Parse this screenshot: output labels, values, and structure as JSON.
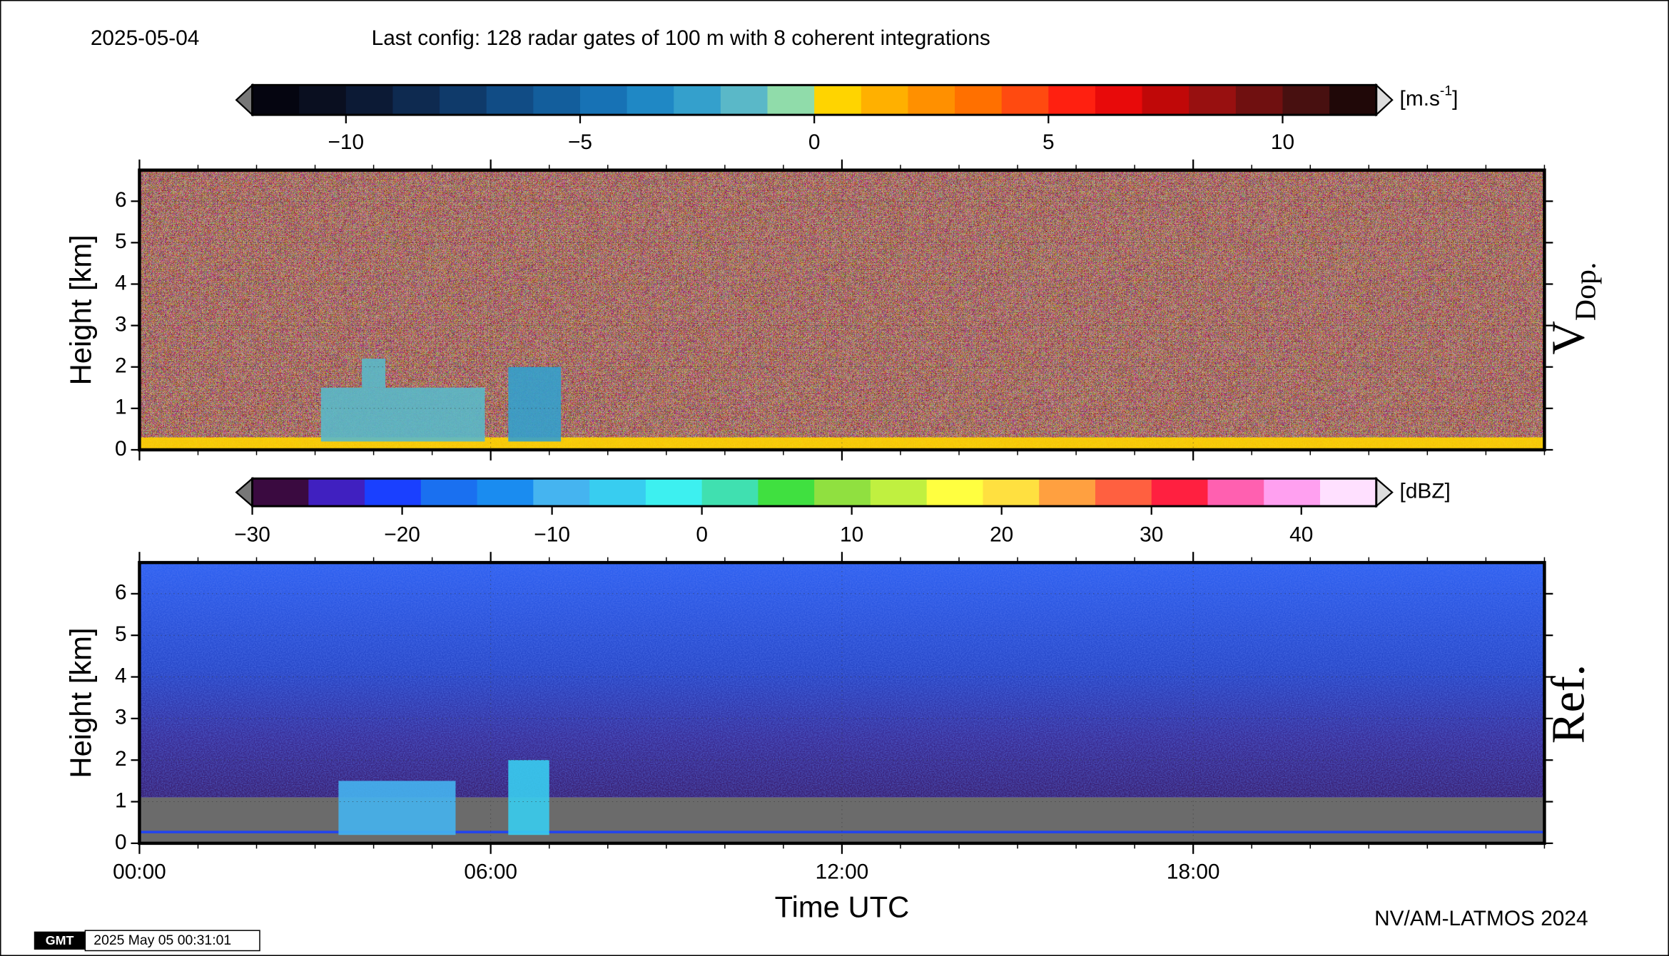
{
  "header": {
    "date": "2025-05-04",
    "title": "Last config: 128 radar gates of 100 m with 8 coherent integrations"
  },
  "footer": {
    "logo": "GMT",
    "timestamp": "2025 May 05 00:31:01",
    "credit": "NV/AM-LATMOS 2024"
  },
  "chart_data": [
    {
      "type": "heatmap",
      "ylabel": "Height [km]",
      "side_label": {
        "main": "V",
        "sub": "Dop."
      },
      "xlim": [
        0,
        24
      ],
      "ylim": [
        0,
        6.75
      ],
      "yticks": [
        0,
        1,
        2,
        3,
        4,
        5,
        6
      ],
      "grid": true,
      "colorbar": {
        "lim": [
          -12,
          12
        ],
        "ticks": [
          {
            "value": -10,
            "label": "−10"
          },
          {
            "value": -5,
            "label": "−5"
          },
          0,
          5,
          10
        ],
        "unit": {
          "open": "[m.s",
          "sup": "-1",
          "close": "]"
        },
        "colors": [
          "#050510",
          "#0a0f20",
          "#0c1a35",
          "#0e2a50",
          "#0f3a6a",
          "#114c85",
          "#135e9c",
          "#1772b5",
          "#1f88c5",
          "#34a0cc",
          "#5ab8c8",
          "#90dcaa",
          "#ffd400",
          "#ffb000",
          "#ff9000",
          "#ff7000",
          "#ff4a10",
          "#ff2010",
          "#e80a0a",
          "#c00808",
          "#981010",
          "#701010",
          "#481010",
          "#200808"
        ]
      },
      "regions": [
        {
          "x": [
            0,
            24
          ],
          "y": [
            0,
            0.3
          ],
          "value": 0.5
        },
        {
          "x": [
            3.1,
            5.9
          ],
          "y": [
            0.2,
            1.5
          ],
          "value": -2
        },
        {
          "x": [
            3.8,
            4.2
          ],
          "y": [
            1.5,
            2.2
          ],
          "value": -2
        },
        {
          "x": [
            6.3,
            7.2
          ],
          "y": [
            0.2,
            2.0
          ],
          "value": -3
        }
      ]
    },
    {
      "type": "heatmap",
      "ylabel": "Height [km]",
      "xlabel": "Time UTC",
      "side_label": {
        "main": "Ref."
      },
      "xlim": [
        0,
        24
      ],
      "ylim": [
        0,
        6.75
      ],
      "yticks": [
        0,
        1,
        2,
        3,
        4,
        5,
        6
      ],
      "grid": true,
      "xticks": [
        {
          "value": 0,
          "label": "00:00"
        },
        {
          "value": 6,
          "label": "06:00"
        },
        {
          "value": 12,
          "label": "12:00"
        },
        {
          "value": 18,
          "label": "18:00"
        }
      ],
      "colorbar": {
        "lim": [
          -30,
          45
        ],
        "ticks": [
          {
            "value": -30,
            "label": "−30"
          },
          {
            "value": -20,
            "label": "−20"
          },
          {
            "value": -10,
            "label": "−10"
          },
          0,
          10,
          20,
          30,
          40
        ],
        "unit": {
          "open": "[dBZ]"
        },
        "colors": [
          "#3a0a40",
          "#4020c0",
          "#1a40ff",
          "#1a70f0",
          "#1a8cf0",
          "#45b4f0",
          "#38cdf0",
          "#3df0f0",
          "#40e0b0",
          "#40e040",
          "#90e040",
          "#c0f040",
          "#ffff40",
          "#ffe040",
          "#ffa040",
          "#ff6040",
          "#ff2040",
          "#ff60b0",
          "#ffa0f0",
          "#ffe0ff"
        ]
      },
      "regions": [
        {
          "x": [
            0,
            24
          ],
          "y": [
            0.24,
            0.3
          ],
          "value": -22
        },
        {
          "x": [
            3.4,
            5.4
          ],
          "y": [
            0.2,
            1.5
          ],
          "value": -8
        },
        {
          "x": [
            6.3,
            7.0
          ],
          "y": [
            0.2,
            2.0
          ],
          "value": -6
        }
      ]
    }
  ]
}
